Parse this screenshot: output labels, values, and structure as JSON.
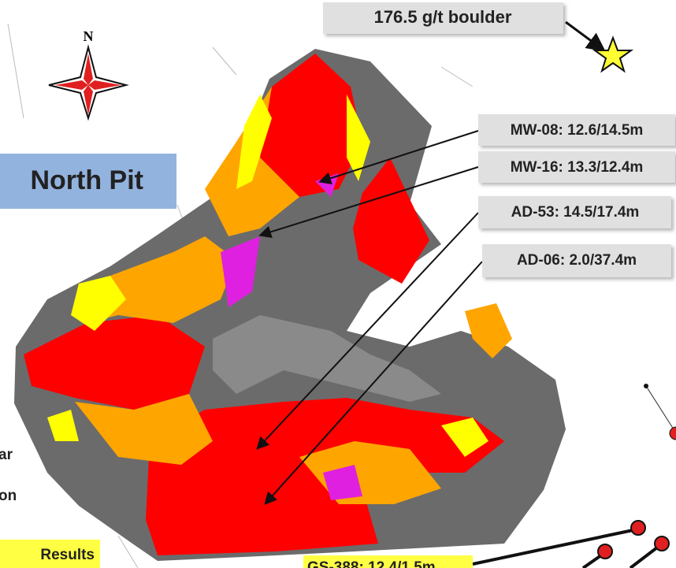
{
  "boulder_label": "176.5 g/t boulder",
  "compass": {
    "label": "N"
  },
  "title": "North Pit",
  "callouts": [
    {
      "label": "MW-08: 12.6/14.5m"
    },
    {
      "label": "MW-16: 13.3/12.4m"
    },
    {
      "label": "AD-53: 14.5/17.4m"
    },
    {
      "label": "AD-06: 2.0/37.4m"
    }
  ],
  "left_text": [
    "ar",
    "on"
  ],
  "results_label": "Results",
  "bottom_label": "GS-388: 12.4/1.5m"
}
